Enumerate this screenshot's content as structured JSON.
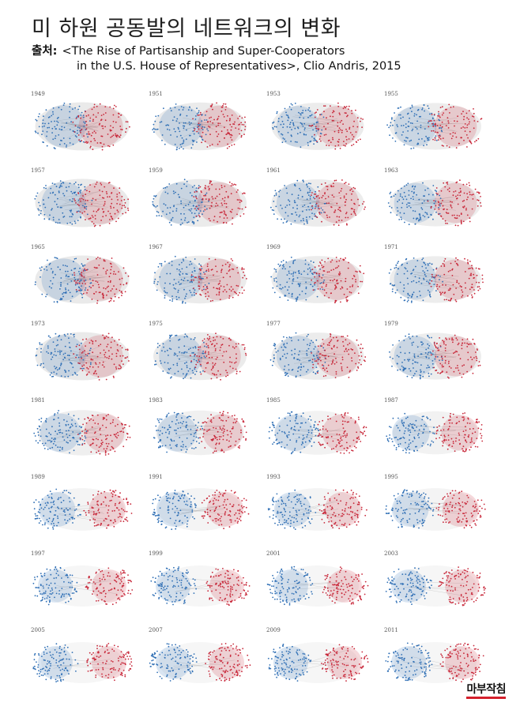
{
  "title": "미 하원 공동발의 네트워크의 변화",
  "source": {
    "label": "출처:",
    "line1": "<The Rise of Partisanship and Super-Cooperators",
    "line2": "in the U.S. House of Representatives>, Clio Andris, 2015"
  },
  "colors": {
    "democrat": "#2f6fb5",
    "republican": "#c8283a",
    "edge": "#b8b8b8"
  },
  "networks": [
    {
      "year": "1949"
    },
    {
      "year": "1951"
    },
    {
      "year": "1953"
    },
    {
      "year": "1955"
    },
    {
      "year": "1957"
    },
    {
      "year": "1959"
    },
    {
      "year": "1961"
    },
    {
      "year": "1963"
    },
    {
      "year": "1965"
    },
    {
      "year": "1967"
    },
    {
      "year": "1969"
    },
    {
      "year": "1971"
    },
    {
      "year": "1973"
    },
    {
      "year": "1975"
    },
    {
      "year": "1977"
    },
    {
      "year": "1979"
    },
    {
      "year": "1981"
    },
    {
      "year": "1983"
    },
    {
      "year": "1985"
    },
    {
      "year": "1987"
    },
    {
      "year": "1989"
    },
    {
      "year": "1991"
    },
    {
      "year": "1993"
    },
    {
      "year": "1995"
    },
    {
      "year": "1997"
    },
    {
      "year": "1999"
    },
    {
      "year": "2001"
    },
    {
      "year": "2003"
    },
    {
      "year": "2005"
    },
    {
      "year": "2007"
    },
    {
      "year": "2009"
    },
    {
      "year": "2011"
    }
  ],
  "logo": "마부작침"
}
